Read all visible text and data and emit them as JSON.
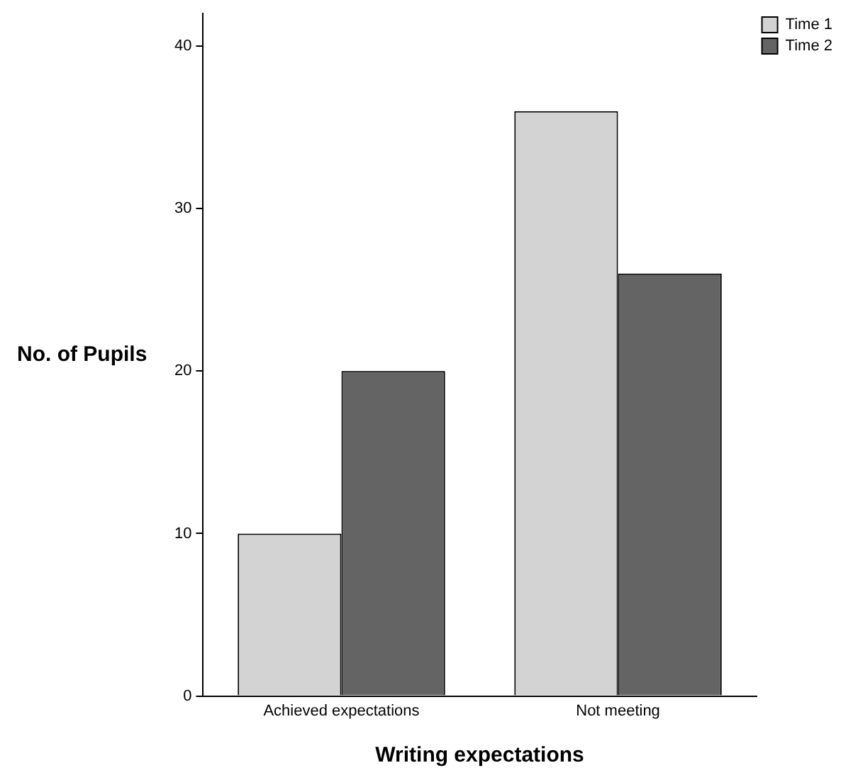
{
  "chart_data": {
    "type": "bar",
    "xlabel": "Writing expectations",
    "ylabel": "No. of Pupils",
    "categories": [
      "Achieved expectations",
      "Not meeting"
    ],
    "series": [
      {
        "name": "Time 1",
        "color": "#d3d3d3",
        "values": [
          10,
          36
        ]
      },
      {
        "name": "Time 2",
        "color": "#646464",
        "values": [
          20,
          26
        ]
      }
    ],
    "ylim": [
      0,
      42
    ],
    "yticks": [
      0,
      10,
      20,
      30,
      40
    ],
    "grid": false,
    "legend": "top right"
  }
}
